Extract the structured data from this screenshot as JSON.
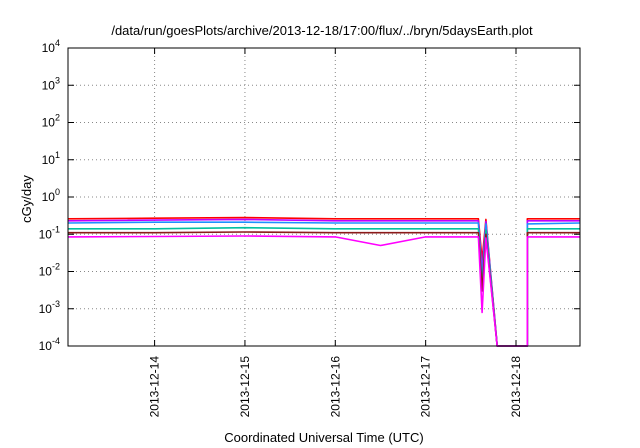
{
  "chart_data": {
    "type": "line",
    "title": "/data/run/goesPlots/archive/2013-12-18/17:00/flux/../bryn/5daysEarth.plot",
    "xlabel": "Coordinated Universal Time (UTC)",
    "ylabel": "cGy/day",
    "yscale": "log",
    "ylim": [
      0.0001,
      10000
    ],
    "xlim": [
      "2013-12-13T01:00",
      "2013-12-18T17:00"
    ],
    "y_ticks": [
      {
        "base": "10",
        "exp": "-4",
        "value": 0.0001
      },
      {
        "base": "10",
        "exp": "-3",
        "value": 0.001
      },
      {
        "base": "10",
        "exp": "-2",
        "value": 0.01
      },
      {
        "base": "10",
        "exp": "-1",
        "value": 0.1
      },
      {
        "base": "10",
        "exp": "0",
        "value": 1
      },
      {
        "base": "10",
        "exp": "1",
        "value": 10
      },
      {
        "base": "10",
        "exp": "2",
        "value": 100
      },
      {
        "base": "10",
        "exp": "3",
        "value": 1000
      },
      {
        "base": "10",
        "exp": "4",
        "value": 10000
      }
    ],
    "x_ticks": [
      {
        "label": "2013-12-14",
        "value": "2013-12-14T00:00"
      },
      {
        "label": "2013-12-15",
        "value": "2013-12-15T00:00"
      },
      {
        "label": "2013-12-16",
        "value": "2013-12-16T00:00"
      },
      {
        "label": "2013-12-17",
        "value": "2013-12-17T00:00"
      },
      {
        "label": "2013-12-18",
        "value": "2013-12-18T00:00"
      }
    ],
    "grid": true,
    "legend": "none",
    "series": [
      {
        "color": "#ff0000",
        "points": [
          [
            "2013-12-13T01:00",
            0.26
          ],
          [
            "2013-12-14T00:00",
            0.27
          ],
          [
            "2013-12-15T00:00",
            0.28
          ],
          [
            "2013-12-16T00:00",
            0.26
          ],
          [
            "2013-12-17T00:00",
            0.26
          ],
          [
            "2013-12-17T14:00",
            0.26
          ],
          [
            "2013-12-17T15:00",
            0.02
          ],
          [
            "2013-12-17T16:00",
            0.25
          ],
          [
            "2013-12-17T19:00",
            0.0001
          ],
          [
            "2013-12-18T03:00",
            0.0001
          ],
          [
            "2013-12-18T03:00",
            0.26
          ],
          [
            "2013-12-18T17:00",
            0.26
          ]
        ]
      },
      {
        "color": "#c000ff",
        "points": [
          [
            "2013-12-13T01:00",
            0.23
          ],
          [
            "2013-12-14T00:00",
            0.24
          ],
          [
            "2013-12-15T00:00",
            0.25
          ],
          [
            "2013-12-16T00:00",
            0.23
          ],
          [
            "2013-12-17T00:00",
            0.23
          ],
          [
            "2013-12-17T14:00",
            0.23
          ],
          [
            "2013-12-17T15:00",
            0.01
          ],
          [
            "2013-12-17T16:00",
            0.22
          ],
          [
            "2013-12-17T19:00",
            0.0001
          ],
          [
            "2013-12-18T03:00",
            0.0001
          ],
          [
            "2013-12-18T03:00",
            0.23
          ],
          [
            "2013-12-18T17:00",
            0.23
          ]
        ]
      },
      {
        "color": "#1e90ff",
        "points": [
          [
            "2013-12-13T01:00",
            0.2
          ],
          [
            "2013-12-14T00:00",
            0.21
          ],
          [
            "2013-12-15T00:00",
            0.21
          ],
          [
            "2013-12-16T00:00",
            0.2
          ],
          [
            "2013-12-17T00:00",
            0.2
          ],
          [
            "2013-12-17T14:00",
            0.2
          ],
          [
            "2013-12-17T15:00",
            0.005
          ],
          [
            "2013-12-17T16:00",
            0.19
          ],
          [
            "2013-12-17T19:00",
            0.0001
          ],
          [
            "2013-12-18T03:00",
            0.0001
          ],
          [
            "2013-12-18T03:00",
            0.19
          ],
          [
            "2013-12-18T17:00",
            0.2
          ]
        ]
      },
      {
        "color": "#00c0a0",
        "points": [
          [
            "2013-12-13T01:00",
            0.14
          ],
          [
            "2013-12-14T00:00",
            0.14
          ],
          [
            "2013-12-15T00:00",
            0.15
          ],
          [
            "2013-12-16T00:00",
            0.14
          ],
          [
            "2013-12-17T00:00",
            0.14
          ],
          [
            "2013-12-17T14:00",
            0.14
          ],
          [
            "2013-12-17T15:00",
            0.004
          ],
          [
            "2013-12-17T16:00",
            0.13
          ],
          [
            "2013-12-17T19:00",
            0.0001
          ],
          [
            "2013-12-18T03:00",
            0.0001
          ],
          [
            "2013-12-18T03:00",
            0.14
          ],
          [
            "2013-12-18T17:00",
            0.14
          ]
        ]
      },
      {
        "color": "#8b1a1a",
        "points": [
          [
            "2013-12-13T01:00",
            0.11
          ],
          [
            "2013-12-14T00:00",
            0.11
          ],
          [
            "2013-12-15T00:00",
            0.115
          ],
          [
            "2013-12-16T00:00",
            0.11
          ],
          [
            "2013-12-17T00:00",
            0.11
          ],
          [
            "2013-12-17T14:00",
            0.11
          ],
          [
            "2013-12-17T15:00",
            0.003
          ],
          [
            "2013-12-17T16:00",
            0.1
          ],
          [
            "2013-12-17T19:00",
            0.0001
          ],
          [
            "2013-12-18T03:00",
            0.0001
          ],
          [
            "2013-12-18T03:00",
            0.11
          ],
          [
            "2013-12-18T17:00",
            0.11
          ]
        ]
      },
      {
        "color": "#ff00ff",
        "points": [
          [
            "2013-12-13T01:00",
            0.085
          ],
          [
            "2013-12-14T00:00",
            0.087
          ],
          [
            "2013-12-15T00:00",
            0.09
          ],
          [
            "2013-12-16T00:00",
            0.085
          ],
          [
            "2013-12-16T12:00",
            0.05
          ],
          [
            "2013-12-17T00:00",
            0.085
          ],
          [
            "2013-12-17T14:00",
            0.085
          ],
          [
            "2013-12-17T15:00",
            0.0008
          ],
          [
            "2013-12-17T16:00",
            0.08
          ],
          [
            "2013-12-17T19:00",
            0.0001
          ],
          [
            "2013-12-18T03:00",
            0.0001
          ],
          [
            "2013-12-18T03:00",
            0.085
          ],
          [
            "2013-12-18T17:00",
            0.085
          ]
        ]
      }
    ]
  }
}
